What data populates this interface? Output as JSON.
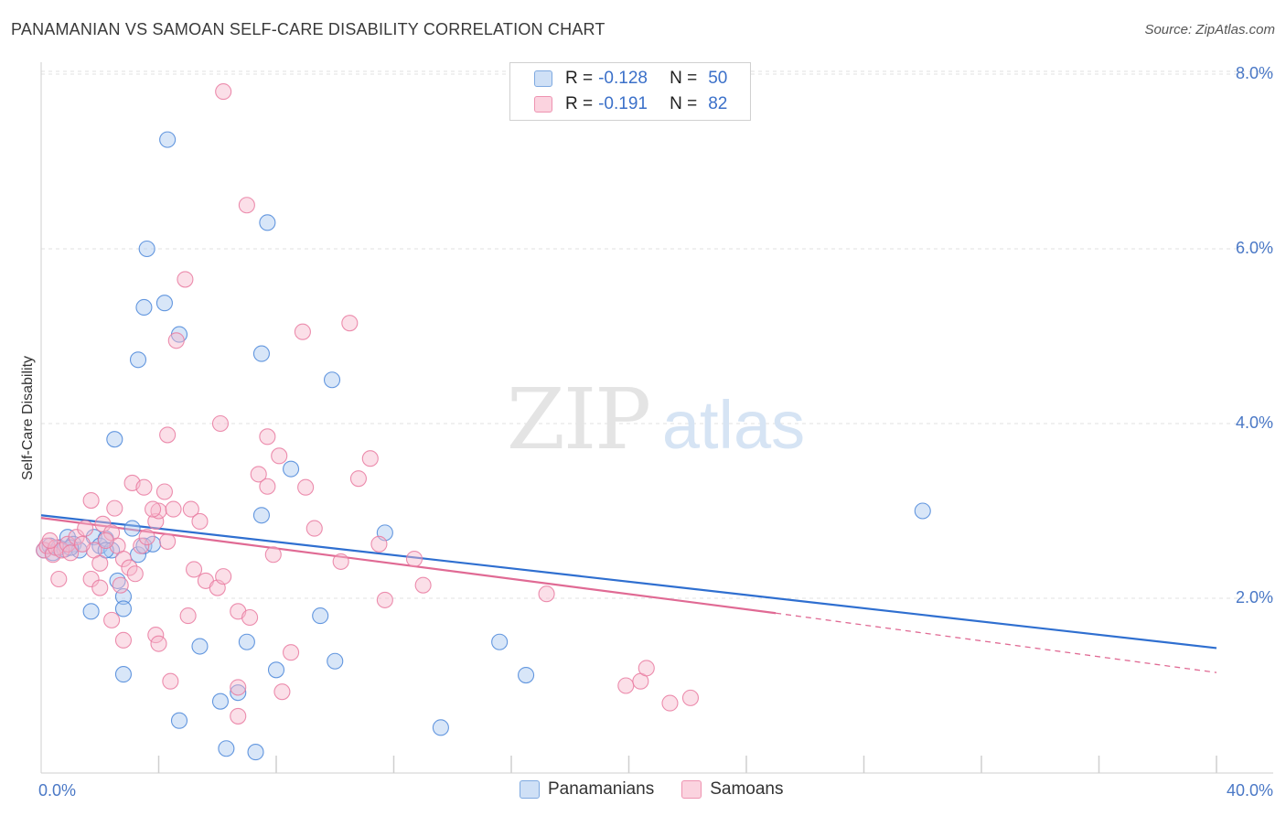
{
  "header": {
    "title": "PANAMANIAN VS SAMOAN SELF-CARE DISABILITY CORRELATION CHART",
    "source": "Source: ZipAtlas.com"
  },
  "watermark": {
    "zip": "ZIP",
    "atlas": "atlas"
  },
  "legend": {
    "rows": [
      {
        "r_label": "R =",
        "r_value": "-0.128",
        "n_label": "N =",
        "n_value": "50",
        "color": "#a9c8f0"
      },
      {
        "r_label": "R =",
        "r_value": "-0.191",
        "n_label": "N =",
        "n_value": "82",
        "color": "#f7b8cc"
      }
    ]
  },
  "bottom_legend": {
    "items": [
      {
        "label": "Panamanians",
        "color": "#a9c8f0"
      },
      {
        "label": "Samoans",
        "color": "#f7b8cc"
      }
    ]
  },
  "chart_data": {
    "type": "scatter",
    "title": "PANAMANIAN VS SAMOAN SELF-CARE DISABILITY CORRELATION CHART",
    "xlabel": "",
    "ylabel": "Self-Care Disability",
    "xlim": [
      0,
      40
    ],
    "ylim": [
      0,
      8.4
    ],
    "x_tick_labels": [
      "0.0%",
      "40.0%"
    ],
    "y_ticks": [
      2,
      4,
      6,
      8
    ],
    "y_tick_labels": [
      "2.0%",
      "4.0%",
      "6.0%",
      "8.0%"
    ],
    "grid": true,
    "legend_position": "top-center",
    "series": [
      {
        "name": "Panamanians",
        "color": "#4a86d9",
        "fill": "#a9c8f0",
        "trend": {
          "x": [
            0,
            40
          ],
          "y": [
            2.95,
            1.43
          ],
          "color": "#2f6fd0"
        },
        "points": [
          [
            0.1,
            2.55
          ],
          [
            0.3,
            2.6
          ],
          [
            0.4,
            2.52
          ],
          [
            0.6,
            2.58
          ],
          [
            0.8,
            2.56
          ],
          [
            0.9,
            2.7
          ],
          [
            1.1,
            2.62
          ],
          [
            1.3,
            2.55
          ],
          [
            1.8,
            2.7
          ],
          [
            2.0,
            2.6
          ],
          [
            2.2,
            2.68
          ],
          [
            2.4,
            2.55
          ],
          [
            2.6,
            2.2
          ],
          [
            2.8,
            2.02
          ],
          [
            3.1,
            2.8
          ],
          [
            3.3,
            2.5
          ],
          [
            3.5,
            2.6
          ],
          [
            4.3,
            7.25
          ],
          [
            3.6,
            6.0
          ],
          [
            3.5,
            5.33
          ],
          [
            4.2,
            5.38
          ],
          [
            4.7,
            5.02
          ],
          [
            3.3,
            4.73
          ],
          [
            2.5,
            3.82
          ],
          [
            7.7,
            6.3
          ],
          [
            7.5,
            4.8
          ],
          [
            9.9,
            4.5
          ],
          [
            8.5,
            3.48
          ],
          [
            7.5,
            2.95
          ],
          [
            11.7,
            2.75
          ],
          [
            30.0,
            3.0
          ],
          [
            1.7,
            1.85
          ],
          [
            2.8,
            1.88
          ],
          [
            2.8,
            1.13
          ],
          [
            5.4,
            1.45
          ],
          [
            7.0,
            1.5
          ],
          [
            8.0,
            1.18
          ],
          [
            9.5,
            1.8
          ],
          [
            10.0,
            1.28
          ],
          [
            15.6,
            1.5
          ],
          [
            16.5,
            1.12
          ],
          [
            4.7,
            0.6
          ],
          [
            6.1,
            0.82
          ],
          [
            6.7,
            0.92
          ],
          [
            6.3,
            0.28
          ],
          [
            7.3,
            0.24
          ],
          [
            13.6,
            0.52
          ],
          [
            3.8,
            2.62
          ],
          [
            1.0,
            2.58
          ],
          [
            2.2,
            2.55
          ]
        ]
      },
      {
        "name": "Samoans",
        "color": "#e97aa0",
        "fill": "#f7b8cc",
        "trend": {
          "x": [
            0,
            25
          ],
          "y": [
            2.92,
            1.83
          ],
          "color": "#e06a94",
          "extension": {
            "x": [
              25,
              40
            ],
            "y": [
              1.83,
              1.15
            ]
          }
        },
        "points": [
          [
            0.1,
            2.55
          ],
          [
            0.2,
            2.6
          ],
          [
            0.4,
            2.5
          ],
          [
            0.5,
            2.58
          ],
          [
            0.7,
            2.55
          ],
          [
            0.9,
            2.62
          ],
          [
            1.0,
            2.52
          ],
          [
            1.2,
            2.7
          ],
          [
            1.5,
            2.8
          ],
          [
            1.8,
            2.55
          ],
          [
            2.0,
            2.4
          ],
          [
            2.1,
            2.85
          ],
          [
            2.4,
            2.75
          ],
          [
            2.6,
            2.6
          ],
          [
            2.8,
            2.45
          ],
          [
            3.0,
            2.35
          ],
          [
            3.2,
            2.28
          ],
          [
            3.4,
            2.6
          ],
          [
            3.6,
            2.7
          ],
          [
            3.9,
            2.88
          ],
          [
            4.0,
            3.0
          ],
          [
            4.3,
            2.65
          ],
          [
            1.7,
            2.22
          ],
          [
            2.0,
            2.12
          ],
          [
            2.7,
            2.15
          ],
          [
            1.7,
            3.12
          ],
          [
            2.5,
            3.03
          ],
          [
            3.1,
            3.32
          ],
          [
            3.5,
            3.27
          ],
          [
            3.8,
            3.02
          ],
          [
            4.2,
            3.22
          ],
          [
            4.5,
            3.02
          ],
          [
            5.1,
            3.02
          ],
          [
            5.4,
            2.88
          ],
          [
            5.2,
            2.33
          ],
          [
            5.6,
            2.2
          ],
          [
            6.0,
            2.12
          ],
          [
            6.2,
            2.25
          ],
          [
            6.7,
            1.85
          ],
          [
            7.1,
            1.78
          ],
          [
            5.0,
            1.8
          ],
          [
            4.9,
            5.65
          ],
          [
            4.6,
            4.95
          ],
          [
            6.2,
            7.8
          ],
          [
            7.0,
            6.5
          ],
          [
            8.9,
            5.05
          ],
          [
            10.5,
            5.15
          ],
          [
            6.1,
            4.0
          ],
          [
            4.3,
            3.87
          ],
          [
            7.7,
            3.85
          ],
          [
            8.1,
            3.63
          ],
          [
            7.4,
            3.42
          ],
          [
            7.7,
            3.28
          ],
          [
            9.0,
            3.27
          ],
          [
            10.8,
            3.37
          ],
          [
            11.2,
            3.6
          ],
          [
            9.3,
            2.8
          ],
          [
            11.5,
            2.62
          ],
          [
            7.9,
            2.5
          ],
          [
            10.2,
            2.42
          ],
          [
            12.7,
            2.45
          ],
          [
            13.0,
            2.15
          ],
          [
            11.7,
            1.98
          ],
          [
            17.2,
            2.05
          ],
          [
            2.4,
            1.75
          ],
          [
            2.8,
            1.52
          ],
          [
            3.9,
            1.58
          ],
          [
            4.0,
            1.48
          ],
          [
            4.4,
            1.05
          ],
          [
            6.7,
            0.98
          ],
          [
            6.7,
            0.65
          ],
          [
            8.2,
            0.93
          ],
          [
            8.5,
            1.38
          ],
          [
            19.9,
            1.0
          ],
          [
            20.4,
            1.05
          ],
          [
            20.6,
            1.2
          ],
          [
            21.4,
            0.8
          ],
          [
            22.1,
            0.86
          ],
          [
            0.6,
            2.22
          ],
          [
            1.4,
            2.62
          ],
          [
            2.2,
            2.66
          ],
          [
            0.3,
            2.66
          ]
        ]
      }
    ]
  }
}
